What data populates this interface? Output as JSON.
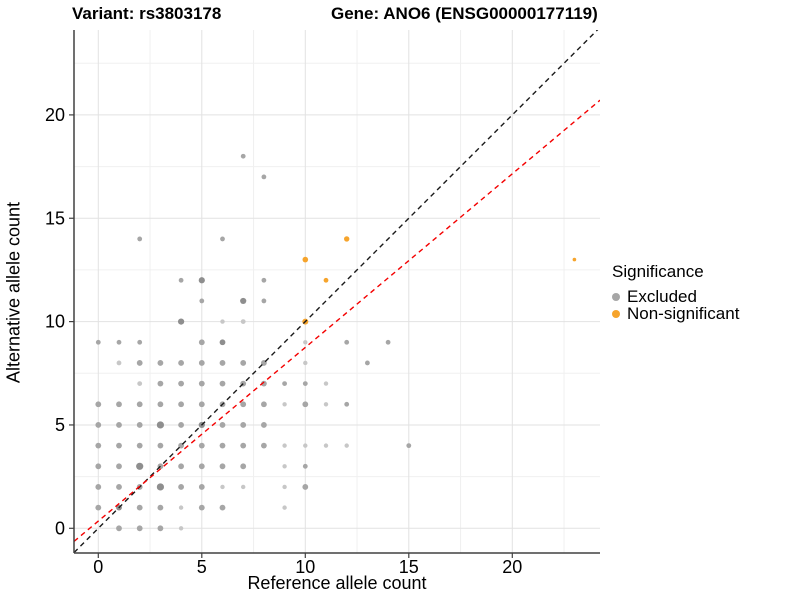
{
  "header": {
    "variant_title": "Variant: rs3803178",
    "gene_title": "Gene: ANO6 (ENSG00000177119)"
  },
  "chart_data": {
    "type": "scatter",
    "xlabel": "Reference allele count",
    "ylabel": "Alternative allele count",
    "x_ticks": [
      0,
      5,
      10,
      15,
      20
    ],
    "y_ticks": [
      0,
      5,
      10,
      15,
      20
    ],
    "xlim": [
      -1.17,
      24.24
    ],
    "ylim": [
      -1.19,
      24.11
    ],
    "grid": {
      "major": [
        0,
        5,
        10,
        15,
        20
      ],
      "minor": [
        2.5,
        7.5,
        12.5,
        17.5,
        22.5
      ],
      "major_color": "#e2e2e2",
      "minor_color": "#f0f0f0"
    },
    "axis_color": "#404040",
    "tick_label_color": "#000000",
    "series": [
      {
        "name": "Excluded",
        "shade_colors": [
          "#c7c7c7",
          "#a6a6a6",
          "#8e8e8e"
        ],
        "points": [
          [
            7,
            18,
            2.4,
            1
          ],
          [
            8,
            17,
            2.4,
            1
          ],
          [
            2,
            14,
            2.4,
            1
          ],
          [
            6,
            14,
            2.4,
            1
          ],
          [
            4,
            12,
            2.4,
            1
          ],
          [
            5,
            12,
            3.1,
            2
          ],
          [
            8,
            12,
            2.4,
            1
          ],
          [
            5,
            11,
            2.4,
            1
          ],
          [
            7,
            11,
            3.1,
            2
          ],
          [
            8,
            11,
            2.4,
            1
          ],
          [
            4,
            10,
            3.1,
            2
          ],
          [
            6,
            10,
            2.2,
            0
          ],
          [
            7,
            10,
            2.4,
            0
          ],
          [
            0,
            9,
            2.4,
            1
          ],
          [
            1,
            9,
            2.4,
            1
          ],
          [
            2,
            9,
            2.4,
            1
          ],
          [
            5,
            9,
            2.9,
            1
          ],
          [
            6,
            9,
            2.9,
            2
          ],
          [
            10,
            9,
            2.2,
            0
          ],
          [
            12,
            9,
            2.4,
            1
          ],
          [
            14,
            9,
            2.4,
            1
          ],
          [
            1,
            8,
            2.4,
            0
          ],
          [
            2,
            8,
            2.9,
            1
          ],
          [
            3,
            8,
            2.9,
            1
          ],
          [
            4,
            8,
            2.9,
            1
          ],
          [
            5,
            8,
            2.9,
            1
          ],
          [
            6,
            8,
            2.9,
            1
          ],
          [
            7,
            8,
            2.9,
            1
          ],
          [
            8,
            8,
            2.9,
            1
          ],
          [
            10,
            8,
            2.2,
            0
          ],
          [
            13,
            8,
            2.4,
            1
          ],
          [
            2,
            7,
            2.4,
            0
          ],
          [
            3,
            7,
            2.9,
            1
          ],
          [
            4,
            7,
            2.9,
            1
          ],
          [
            5,
            7,
            2.9,
            1
          ],
          [
            6,
            7,
            2.9,
            1
          ],
          [
            7,
            7,
            2.9,
            1
          ],
          [
            8,
            7,
            2.9,
            1
          ],
          [
            9,
            7,
            2.4,
            1
          ],
          [
            10,
            7,
            2.4,
            1
          ],
          [
            11,
            7,
            2.2,
            0
          ],
          [
            0,
            6,
            2.9,
            1
          ],
          [
            1,
            6,
            2.9,
            1
          ],
          [
            2,
            6,
            2.9,
            1
          ],
          [
            3,
            6,
            2.9,
            1
          ],
          [
            4,
            6,
            2.9,
            1
          ],
          [
            5,
            6,
            2.9,
            1
          ],
          [
            6,
            6,
            2.9,
            1
          ],
          [
            7,
            6,
            2.9,
            1
          ],
          [
            8,
            6,
            2.9,
            1
          ],
          [
            9,
            6,
            2.2,
            0
          ],
          [
            10,
            6,
            2.9,
            1
          ],
          [
            11,
            6,
            2.2,
            0
          ],
          [
            12,
            6,
            2.4,
            1
          ],
          [
            0,
            5,
            2.9,
            1
          ],
          [
            1,
            5,
            2.9,
            1
          ],
          [
            2,
            5,
            2.9,
            1
          ],
          [
            3,
            5,
            3.6,
            2
          ],
          [
            4,
            5,
            2.9,
            1
          ],
          [
            5,
            5,
            3.1,
            2
          ],
          [
            6,
            5,
            2.9,
            1
          ],
          [
            7,
            5,
            2.9,
            1
          ],
          [
            8,
            5,
            2.9,
            1
          ],
          [
            0,
            4,
            2.9,
            1
          ],
          [
            1,
            4,
            2.9,
            1
          ],
          [
            2,
            4,
            2.9,
            1
          ],
          [
            3,
            4,
            2.9,
            1
          ],
          [
            4,
            4,
            2.9,
            1
          ],
          [
            5,
            4,
            2.9,
            1
          ],
          [
            6,
            4,
            2.9,
            1
          ],
          [
            7,
            4,
            2.9,
            1
          ],
          [
            8,
            4,
            2.9,
            1
          ],
          [
            9,
            4,
            2.2,
            0
          ],
          [
            10,
            4,
            2.2,
            0
          ],
          [
            11,
            4,
            2.2,
            0
          ],
          [
            12,
            4,
            2.2,
            0
          ],
          [
            15,
            4,
            2.4,
            1
          ],
          [
            0,
            3,
            2.9,
            1
          ],
          [
            1,
            3,
            2.9,
            1
          ],
          [
            2,
            3,
            3.6,
            2
          ],
          [
            3,
            3,
            2.9,
            1
          ],
          [
            4,
            3,
            2.9,
            1
          ],
          [
            5,
            3,
            2.9,
            1
          ],
          [
            6,
            3,
            2.9,
            1
          ],
          [
            7,
            3,
            2.9,
            1
          ],
          [
            9,
            3,
            2.2,
            0
          ],
          [
            10,
            3,
            2.4,
            1
          ],
          [
            0,
            2,
            2.9,
            1
          ],
          [
            1,
            2,
            2.9,
            1
          ],
          [
            2,
            2,
            2.9,
            1
          ],
          [
            3,
            2,
            3.6,
            2
          ],
          [
            4,
            2,
            2.9,
            1
          ],
          [
            5,
            2,
            2.9,
            1
          ],
          [
            6,
            2,
            2.2,
            0
          ],
          [
            7,
            2,
            2.2,
            0
          ],
          [
            9,
            2,
            2.2,
            0
          ],
          [
            10,
            2,
            2.9,
            1
          ],
          [
            0,
            1,
            2.9,
            1
          ],
          [
            1,
            1,
            2.9,
            2
          ],
          [
            2,
            1,
            2.9,
            1
          ],
          [
            3,
            1,
            2.9,
            1
          ],
          [
            4,
            1,
            2.2,
            0
          ],
          [
            5,
            1,
            2.9,
            1
          ],
          [
            6,
            1,
            2.9,
            1
          ],
          [
            9,
            1,
            2.2,
            0
          ],
          [
            1,
            0,
            2.9,
            1
          ],
          [
            2,
            0,
            2.9,
            1
          ],
          [
            3,
            0,
            2.9,
            1
          ],
          [
            4,
            0,
            2.2,
            0
          ]
        ]
      },
      {
        "name": "Non-significant",
        "color": "#f6a42c",
        "points": [
          [
            10,
            13,
            2.8
          ],
          [
            11,
            12,
            2.4
          ],
          [
            12,
            14,
            2.7
          ],
          [
            10,
            10,
            3.0
          ],
          [
            23,
            13,
            1.8
          ]
        ]
      }
    ],
    "ref_lines": [
      {
        "name": "identity",
        "slope": 1,
        "intercept": 0,
        "color": "#1a1a1a",
        "dash": "5,4"
      },
      {
        "name": "fit",
        "slope": 0.84,
        "intercept": 0.35,
        "color": "#f40000",
        "dash": "5,4"
      }
    ]
  },
  "legend": {
    "title": "Significance",
    "items": [
      {
        "label": "Excluded",
        "color": "#a6a6a6"
      },
      {
        "label": "Non-significant",
        "color": "#f6a42c"
      }
    ]
  }
}
